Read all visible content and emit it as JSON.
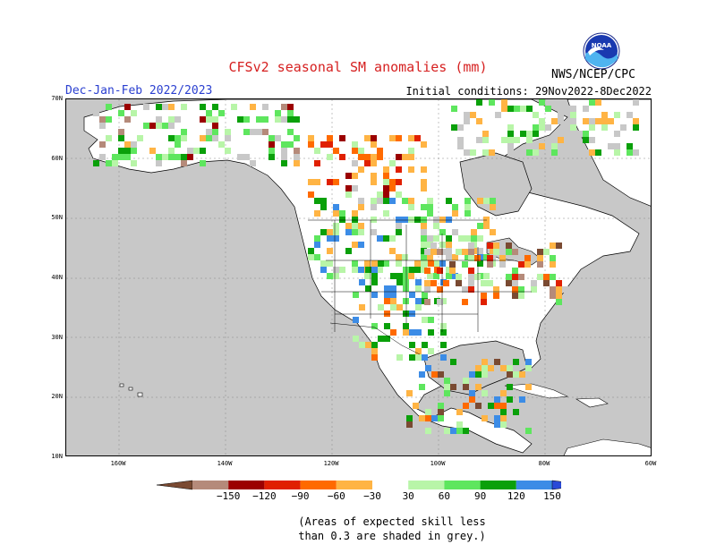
{
  "title": "CFSv2 seasonal SM anomalies (mm)",
  "season": "Dec-Jan-Feb 2022/2023",
  "initial_conditions": "Initial conditions: 29Nov2022-8Dec2022",
  "agency": "NWS/NCEP/CPC",
  "logo_text": "NOAA",
  "lat_labels": [
    "70N",
    "60N",
    "50N",
    "40N",
    "30N",
    "20N",
    "10N"
  ],
  "lon_labels": [
    "160W",
    "140W",
    "120W",
    "100W",
    "80W",
    "60W"
  ],
  "colorbar": {
    "labels": [
      "−150",
      "−120",
      "−90",
      "−60",
      "−30",
      "30",
      "60",
      "90",
      "120",
      "150"
    ],
    "colors": [
      "#7a4a32",
      "#b58a7a",
      "#9b0000",
      "#e02000",
      "#ff6a00",
      "#ffb444",
      "#ffffff",
      "#b8f5a8",
      "#5ee65e",
      "#0aa00a",
      "#3c8ce6",
      "#2a4ad8"
    ]
  },
  "note_line1": "(Areas of expected skill less",
  "note_line2": "than 0.3 are shaded in grey.)",
  "map_colors": {
    "ocean": "#c8c8c8",
    "land": "#ffffff",
    "grey_land": "#c8c8c8"
  }
}
